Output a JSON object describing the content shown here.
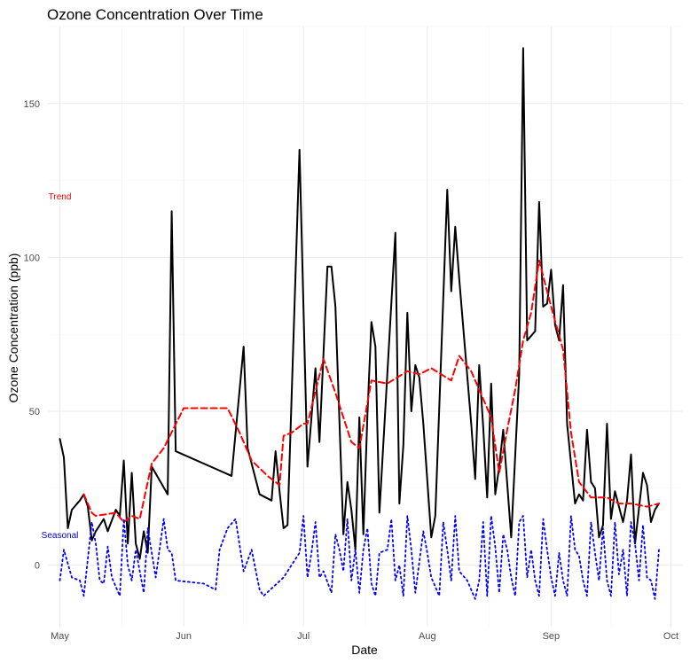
{
  "chart_data": {
    "type": "line",
    "title": "Ozone Concentration Over Time",
    "xlabel": "Date",
    "ylabel": "Ozone Concentration (ppb)",
    "x_range": [
      "2023-04-28",
      "2023-10-04"
    ],
    "ylim": [
      -20,
      175
    ],
    "x_ticks": [
      {
        "date": "2023-05-01",
        "label": "May"
      },
      {
        "date": "2023-06-01",
        "label": "Jun"
      },
      {
        "date": "2023-07-01",
        "label": "Jul"
      },
      {
        "date": "2023-08-01",
        "label": "Aug"
      },
      {
        "date": "2023-09-01",
        "label": "Sep"
      },
      {
        "date": "2023-10-01",
        "label": "Oct"
      }
    ],
    "y_ticks": [
      0,
      50,
      100,
      150
    ],
    "grid": true,
    "legend": "none",
    "annotations": [
      {
        "text": "Trend",
        "color": "#ff0000",
        "date": "2023-05-01",
        "y": 120
      },
      {
        "text": "Seasonal",
        "color": "#0000cc",
        "date": "2023-05-01",
        "y": 10
      }
    ],
    "series": [
      {
        "color": "#000000",
        "style": "solid",
        "points": [
          [
            "2023-05-01",
            41
          ],
          [
            "2023-05-02",
            35
          ],
          [
            "2023-05-03",
            12
          ],
          [
            "2023-05-04",
            18
          ],
          [
            "2023-05-06",
            21
          ],
          [
            "2023-05-07",
            23
          ],
          [
            "2023-05-08",
            19
          ],
          [
            "2023-05-09",
            8
          ],
          [
            "2023-05-10",
            11
          ],
          [
            "2023-05-12",
            15
          ],
          [
            "2023-05-13",
            11
          ],
          [
            "2023-05-15",
            18
          ],
          [
            "2023-05-16",
            16
          ],
          [
            "2023-05-17",
            34
          ],
          [
            "2023-05-18",
            7
          ],
          [
            "2023-05-19",
            30
          ],
          [
            "2023-05-20",
            7
          ],
          [
            "2023-05-21",
            2
          ],
          [
            "2023-05-22",
            11
          ],
          [
            "2023-05-23",
            4
          ],
          [
            "2023-05-24",
            32
          ],
          [
            "2023-05-28",
            23
          ],
          [
            "2023-05-29",
            115
          ],
          [
            "2023-05-30",
            37
          ],
          [
            "2023-06-13",
            29
          ],
          [
            "2023-06-16",
            71
          ],
          [
            "2023-06-17",
            38
          ],
          [
            "2023-06-20",
            23
          ],
          [
            "2023-06-23",
            21
          ],
          [
            "2023-06-24",
            37
          ],
          [
            "2023-06-25",
            24
          ],
          [
            "2023-06-26",
            12
          ],
          [
            "2023-06-27",
            13
          ],
          [
            "2023-06-30",
            135
          ],
          [
            "2023-07-02",
            32
          ],
          [
            "2023-07-04",
            64
          ],
          [
            "2023-07-05",
            40
          ],
          [
            "2023-07-07",
            97
          ],
          [
            "2023-07-08",
            97
          ],
          [
            "2023-07-09",
            84
          ],
          [
            "2023-07-11",
            10
          ],
          [
            "2023-07-12",
            27
          ],
          [
            "2023-07-13",
            18
          ],
          [
            "2023-07-14",
            5
          ],
          [
            "2023-07-15",
            48
          ],
          [
            "2023-07-16",
            10
          ],
          [
            "2023-07-17",
            49
          ],
          [
            "2023-07-18",
            79
          ],
          [
            "2023-07-19",
            71
          ],
          [
            "2023-07-20",
            17
          ],
          [
            "2023-07-24",
            108
          ],
          [
            "2023-07-25",
            20
          ],
          [
            "2023-07-26",
            39
          ],
          [
            "2023-07-27",
            82
          ],
          [
            "2023-07-28",
            50
          ],
          [
            "2023-07-29",
            65
          ],
          [
            "2023-07-30",
            61
          ],
          [
            "2023-07-31",
            46
          ],
          [
            "2023-08-02",
            9
          ],
          [
            "2023-08-03",
            16
          ],
          [
            "2023-08-06",
            122
          ],
          [
            "2023-08-07",
            89
          ],
          [
            "2023-08-08",
            110
          ],
          [
            "2023-08-09",
            93
          ],
          [
            "2023-08-12",
            46
          ],
          [
            "2023-08-13",
            28
          ],
          [
            "2023-08-14",
            65
          ],
          [
            "2023-08-15",
            45
          ],
          [
            "2023-08-16",
            22
          ],
          [
            "2023-08-17",
            59
          ],
          [
            "2023-08-18",
            23
          ],
          [
            "2023-08-19",
            32
          ],
          [
            "2023-08-20",
            44
          ],
          [
            "2023-08-22",
            9
          ],
          [
            "2023-08-24",
            62
          ],
          [
            "2023-08-25",
            168
          ],
          [
            "2023-08-26",
            73
          ],
          [
            "2023-08-28",
            76
          ],
          [
            "2023-08-29",
            118
          ],
          [
            "2023-08-30",
            84
          ],
          [
            "2023-08-31",
            85
          ],
          [
            "2023-09-01",
            96
          ],
          [
            "2023-09-02",
            78
          ],
          [
            "2023-09-03",
            73
          ],
          [
            "2023-09-04",
            91
          ],
          [
            "2023-09-05",
            46
          ],
          [
            "2023-09-07",
            20
          ],
          [
            "2023-09-08",
            23
          ],
          [
            "2023-09-09",
            21
          ],
          [
            "2023-09-10",
            44
          ],
          [
            "2023-09-11",
            27
          ],
          [
            "2023-09-12",
            25
          ],
          [
            "2023-09-13",
            9
          ],
          [
            "2023-09-14",
            13
          ],
          [
            "2023-09-15",
            46
          ],
          [
            "2023-09-16",
            15
          ],
          [
            "2023-09-17",
            24
          ],
          [
            "2023-09-18",
            19
          ],
          [
            "2023-09-19",
            14
          ],
          [
            "2023-09-20",
            21
          ],
          [
            "2023-09-21",
            36
          ],
          [
            "2023-09-22",
            7
          ],
          [
            "2023-09-24",
            30
          ],
          [
            "2023-09-25",
            26
          ],
          [
            "2023-09-26",
            14
          ],
          [
            "2023-09-27",
            18
          ],
          [
            "2023-09-28",
            20
          ]
        ]
      },
      {
        "color": "#ff0000",
        "style": "dashed",
        "points": [
          [
            "2023-05-07",
            23
          ],
          [
            "2023-05-09",
            17
          ],
          [
            "2023-05-10",
            16
          ],
          [
            "2023-05-15",
            17
          ],
          [
            "2023-05-17",
            14
          ],
          [
            "2023-05-19",
            16
          ],
          [
            "2023-05-21",
            15
          ],
          [
            "2023-05-24",
            33
          ],
          [
            "2023-05-27",
            38
          ],
          [
            "2023-06-01",
            51
          ],
          [
            "2023-06-12",
            51
          ],
          [
            "2023-06-15",
            43
          ],
          [
            "2023-06-18",
            34
          ],
          [
            "2023-06-22",
            29
          ],
          [
            "2023-06-25",
            26
          ],
          [
            "2023-06-26",
            42
          ],
          [
            "2023-06-28",
            43
          ],
          [
            "2023-07-01",
            46
          ],
          [
            "2023-07-02",
            46
          ],
          [
            "2023-07-06",
            67
          ],
          [
            "2023-07-09",
            56
          ],
          [
            "2023-07-13",
            40
          ],
          [
            "2023-07-15",
            38
          ],
          [
            "2023-07-18",
            60
          ],
          [
            "2023-07-22",
            59
          ],
          [
            "2023-07-27",
            63
          ],
          [
            "2023-07-30",
            62
          ],
          [
            "2023-08-02",
            64
          ],
          [
            "2023-08-07",
            60
          ],
          [
            "2023-08-09",
            68
          ],
          [
            "2023-08-12",
            63
          ],
          [
            "2023-08-14",
            57
          ],
          [
            "2023-08-17",
            48
          ],
          [
            "2023-08-19",
            30
          ],
          [
            "2023-08-21",
            44
          ],
          [
            "2023-08-23",
            57
          ],
          [
            "2023-08-25",
            73
          ],
          [
            "2023-08-27",
            82
          ],
          [
            "2023-08-29",
            99
          ],
          [
            "2023-09-01",
            84
          ],
          [
            "2023-09-04",
            70
          ],
          [
            "2023-09-06",
            43
          ],
          [
            "2023-09-08",
            27
          ],
          [
            "2023-09-11",
            22
          ],
          [
            "2023-09-15",
            22
          ],
          [
            "2023-09-18",
            20
          ],
          [
            "2023-09-21",
            20
          ],
          [
            "2023-09-25",
            19
          ],
          [
            "2023-09-28",
            20
          ]
        ]
      },
      {
        "color": "#0000ff",
        "style": "dotted",
        "points": [
          [
            "2023-05-01",
            -5
          ],
          [
            "2023-05-02",
            5
          ],
          [
            "2023-05-04",
            -4
          ],
          [
            "2023-05-06",
            -5
          ],
          [
            "2023-05-07",
            -10
          ],
          [
            "2023-05-09",
            14
          ],
          [
            "2023-05-10",
            7
          ],
          [
            "2023-05-11",
            -5
          ],
          [
            "2023-05-12",
            -6
          ],
          [
            "2023-05-13",
            6
          ],
          [
            "2023-05-14",
            -4
          ],
          [
            "2023-05-16",
            -10
          ],
          [
            "2023-05-17",
            15
          ],
          [
            "2023-05-18",
            0
          ],
          [
            "2023-05-19",
            -5
          ],
          [
            "2023-05-20",
            5
          ],
          [
            "2023-05-22",
            -9
          ],
          [
            "2023-05-23",
            12
          ],
          [
            "2023-05-25",
            -4
          ],
          [
            "2023-05-27",
            15
          ],
          [
            "2023-05-28",
            5
          ],
          [
            "2023-05-29",
            4
          ],
          [
            "2023-05-30",
            -5
          ],
          [
            "2023-06-06",
            -6
          ],
          [
            "2023-06-09",
            -8
          ],
          [
            "2023-06-10",
            5
          ],
          [
            "2023-06-12",
            12
          ],
          [
            "2023-06-14",
            15
          ],
          [
            "2023-06-16",
            -2
          ],
          [
            "2023-06-18",
            5
          ],
          [
            "2023-06-20",
            -8
          ],
          [
            "2023-06-21",
            -10
          ],
          [
            "2023-06-26",
            -4
          ],
          [
            "2023-06-28",
            0
          ],
          [
            "2023-06-30",
            4
          ],
          [
            "2023-07-01",
            16
          ],
          [
            "2023-07-02",
            -4
          ],
          [
            "2023-07-03",
            4
          ],
          [
            "2023-07-04",
            14
          ],
          [
            "2023-07-05",
            -4
          ],
          [
            "2023-07-06",
            -2
          ],
          [
            "2023-07-08",
            -9
          ],
          [
            "2023-07-09",
            10
          ],
          [
            "2023-07-10",
            5
          ],
          [
            "2023-07-11",
            -2
          ],
          [
            "2023-07-12",
            15
          ],
          [
            "2023-07-13",
            -5
          ],
          [
            "2023-07-14",
            5
          ],
          [
            "2023-07-15",
            -9
          ],
          [
            "2023-07-16",
            5
          ],
          [
            "2023-07-17",
            12
          ],
          [
            "2023-07-18",
            -6
          ],
          [
            "2023-07-19",
            -10
          ],
          [
            "2023-07-20",
            4
          ],
          [
            "2023-07-22",
            5
          ],
          [
            "2023-07-23",
            15
          ],
          [
            "2023-07-24",
            -5
          ],
          [
            "2023-07-25",
            0
          ],
          [
            "2023-07-26",
            -10
          ],
          [
            "2023-07-27",
            16
          ],
          [
            "2023-07-28",
            5
          ],
          [
            "2023-07-29",
            -9
          ],
          [
            "2023-07-31",
            11
          ],
          [
            "2023-08-01",
            4
          ],
          [
            "2023-08-02",
            -4
          ],
          [
            "2023-08-04",
            -10
          ],
          [
            "2023-08-05",
            14
          ],
          [
            "2023-08-06",
            5
          ],
          [
            "2023-08-07",
            -5
          ],
          [
            "2023-08-08",
            16
          ],
          [
            "2023-08-09",
            -2
          ],
          [
            "2023-08-11",
            -5
          ],
          [
            "2023-08-13",
            -11
          ],
          [
            "2023-08-14",
            -5
          ],
          [
            "2023-08-15",
            14
          ],
          [
            "2023-08-16",
            -10
          ],
          [
            "2023-08-17",
            16
          ],
          [
            "2023-08-18",
            6
          ],
          [
            "2023-08-19",
            -9
          ],
          [
            "2023-08-20",
            10
          ],
          [
            "2023-08-21",
            5
          ],
          [
            "2023-08-22",
            -4
          ],
          [
            "2023-08-23",
            -10
          ],
          [
            "2023-08-24",
            14
          ],
          [
            "2023-08-25",
            16
          ],
          [
            "2023-08-26",
            -4
          ],
          [
            "2023-08-27",
            5
          ],
          [
            "2023-08-28",
            -5
          ],
          [
            "2023-08-29",
            -10
          ],
          [
            "2023-08-30",
            15
          ],
          [
            "2023-08-31",
            5
          ],
          [
            "2023-09-01",
            -4
          ],
          [
            "2023-09-02",
            -10
          ],
          [
            "2023-09-03",
            4
          ],
          [
            "2023-09-04",
            -5
          ],
          [
            "2023-09-05",
            -10
          ],
          [
            "2023-09-06",
            16
          ],
          [
            "2023-09-07",
            5
          ],
          [
            "2023-09-08",
            3
          ],
          [
            "2023-09-09",
            -5
          ],
          [
            "2023-09-10",
            -10
          ],
          [
            "2023-09-11",
            14
          ],
          [
            "2023-09-12",
            4
          ],
          [
            "2023-09-13",
            -5
          ],
          [
            "2023-09-14",
            12
          ],
          [
            "2023-09-15",
            -5
          ],
          [
            "2023-09-16",
            -10
          ],
          [
            "2023-09-17",
            14
          ],
          [
            "2023-09-18",
            -3
          ],
          [
            "2023-09-19",
            5
          ],
          [
            "2023-09-20",
            -10
          ],
          [
            "2023-09-21",
            14
          ],
          [
            "2023-09-22",
            7
          ],
          [
            "2023-09-23",
            -5
          ],
          [
            "2023-09-24",
            13
          ],
          [
            "2023-09-25",
            -4
          ],
          [
            "2023-09-26",
            -5
          ],
          [
            "2023-09-27",
            -11
          ],
          [
            "2023-09-28",
            5
          ]
        ]
      }
    ]
  }
}
